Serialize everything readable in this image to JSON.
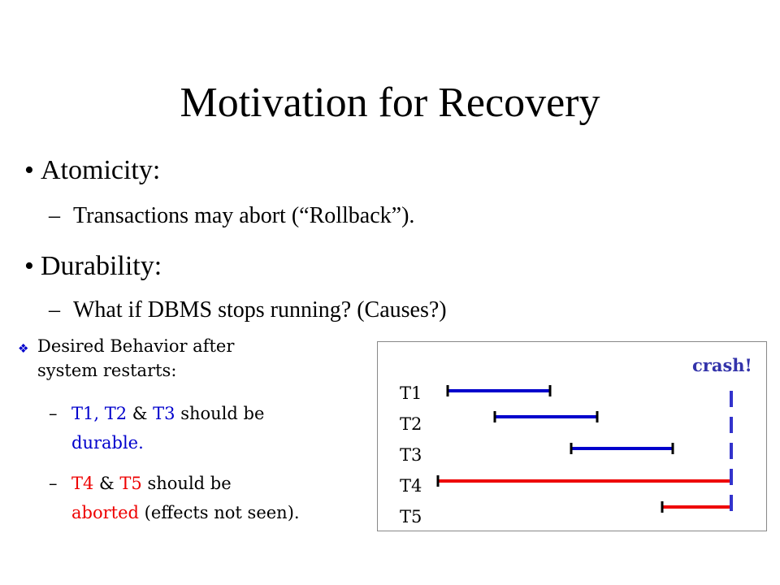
{
  "slide": {
    "title": "Motivation for Recovery",
    "bullet_char": "•",
    "dash_char": "–",
    "bullets": [
      {
        "label": "Atomicity:",
        "sub": "Transactions may abort (“Rollback”)."
      },
      {
        "label": "Durability:",
        "sub": "What if DBMS stops running?  (Causes?)"
      }
    ],
    "desired": {
      "marker": "❖",
      "line1": "Desired Behavior after",
      "line2": "system restarts:",
      "item1": {
        "t1": "T1, T2",
        "amp": " & ",
        "t3": "T3",
        "rest": " should be",
        "word": "durable."
      },
      "item2": {
        "t4": "T4",
        "amp": " & ",
        "t5": "T5",
        "rest": " should be",
        "word": "aborted",
        "tail": " (effects not seen)."
      }
    },
    "diagram": {
      "crash_label": "crash!",
      "colors": {
        "durable": "#0000cc",
        "aborted": "#ee0000",
        "crash": "#3333cc"
      },
      "transactions": [
        {
          "label": "T1",
          "color": "durable"
        },
        {
          "label": "T2",
          "color": "durable"
        },
        {
          "label": "T3",
          "color": "durable"
        },
        {
          "label": "T4",
          "color": "aborted"
        },
        {
          "label": "T5",
          "color": "aborted"
        }
      ]
    }
  }
}
